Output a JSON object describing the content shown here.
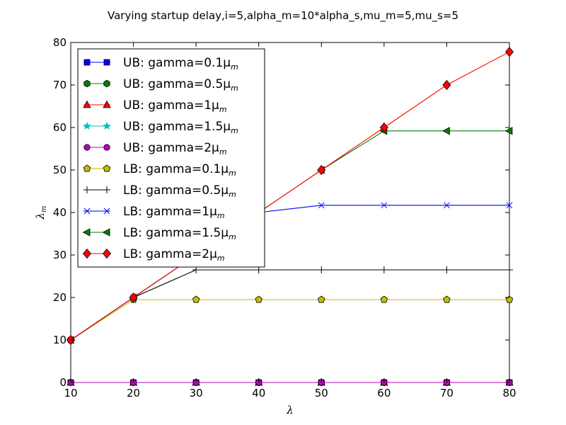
{
  "chart_data": {
    "type": "line",
    "title": "Varying startup delay,i=5,alpha_m=10*alpha_s,mu_m=5,mu_s=5",
    "xlabel": "λ",
    "ylabel": "λ",
    "ylabel_subscript": "m",
    "xlim": [
      10,
      80
    ],
    "ylim": [
      0,
      80
    ],
    "x_ticks": [
      10,
      20,
      30,
      40,
      50,
      60,
      70,
      80
    ],
    "y_ticks": [
      0,
      10,
      20,
      30,
      40,
      50,
      60,
      70,
      80
    ],
    "x": [
      10,
      20,
      30,
      40,
      50,
      60,
      70,
      80
    ],
    "legend_position": "upper-left",
    "grid": false,
    "series": [
      {
        "name": "UB: gamma=0.1μ",
        "name_sub": "m",
        "color": "#0000ff",
        "marker": "square",
        "line": true,
        "values": [
          0,
          0,
          0,
          0,
          0,
          0,
          0,
          0
        ]
      },
      {
        "name": "UB: gamma=0.5μ",
        "name_sub": "m",
        "color": "#008000",
        "marker": "hexagon",
        "line": true,
        "values": [
          0,
          0,
          0,
          0,
          0,
          0,
          0,
          0
        ]
      },
      {
        "name": "UB: gamma=1μ",
        "name_sub": "m",
        "color": "#ff0000",
        "marker": "triangle",
        "line": true,
        "values": [
          0,
          0,
          0,
          0,
          0,
          0,
          0,
          0
        ]
      },
      {
        "name": "UB: gamma=1.5μ",
        "name_sub": "m",
        "color": "#00bfbf",
        "marker": "star",
        "line": true,
        "values": [
          0,
          0,
          0,
          0,
          0,
          0,
          0,
          0
        ]
      },
      {
        "name": "UB: gamma=2μ",
        "name_sub": "m",
        "color": "#bf00bf",
        "marker": "circle",
        "line": true,
        "values": [
          0,
          0,
          0,
          0,
          0,
          0,
          0,
          0
        ]
      },
      {
        "name": "LB: gamma=0.1μ",
        "name_sub": "m",
        "color": "#bfbf00",
        "marker": "pentagon",
        "line": true,
        "values": [
          10,
          19.5,
          19.5,
          19.5,
          19.5,
          19.5,
          19.5,
          19.5
        ]
      },
      {
        "name": "LB: gamma=0.5μ",
        "name_sub": "m",
        "color": "#000000",
        "marker": "plus",
        "line": true,
        "values": [
          10,
          20,
          26.5,
          26.5,
          26.5,
          26.5,
          26.5,
          26.5
        ]
      },
      {
        "name": "LB: gamma=1μ",
        "name_sub": "m",
        "color": "#0000ff",
        "marker": "x",
        "line": true,
        "values": [
          10,
          20,
          30,
          40,
          41.7,
          41.7,
          41.7,
          41.7
        ]
      },
      {
        "name": "LB: gamma=1.5μ",
        "name_sub": "m",
        "color": "#008000",
        "marker": "triangle-left",
        "line": true,
        "values": [
          10,
          20,
          30,
          40,
          50,
          59.2,
          59.2,
          59.2
        ]
      },
      {
        "name": "LB: gamma=2μ",
        "name_sub": "m",
        "color": "#ff0000",
        "marker": "diamond",
        "line": true,
        "values": [
          10,
          20,
          30,
          40,
          50,
          60,
          70,
          77.8
        ]
      }
    ]
  }
}
